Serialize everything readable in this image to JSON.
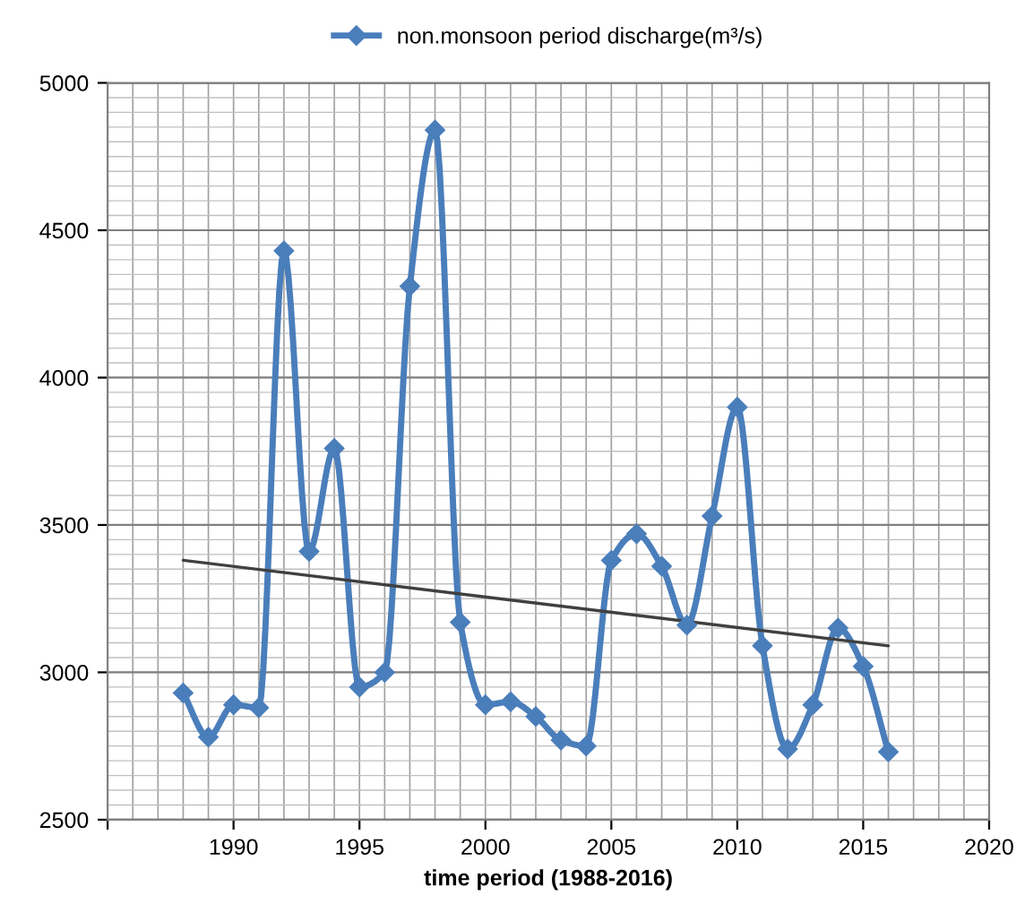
{
  "chart_data": {
    "type": "line",
    "xlabel": "time period (1988-2016)",
    "legend": "top",
    "grid": true,
    "marker": "diamond",
    "line_style": "solid",
    "xlim": [
      1985,
      2020
    ],
    "xticks": [
      {
        "value": 1985,
        "label": null
      },
      1990,
      1995,
      2000,
      2005,
      2010,
      2015,
      2020
    ],
    "ylim": [
      2500,
      5000
    ],
    "yticks": [
      2500,
      3000,
      3500,
      4000,
      4500,
      5000
    ],
    "series": [
      {
        "name": "non.monsoon period discharge(m³/s)",
        "color": "#4a7ebb",
        "x": [
          1988,
          1989,
          1990,
          1991,
          1992,
          1993,
          1994,
          1995,
          1996,
          1997,
          1998,
          1999,
          2000,
          2001,
          2002,
          2003,
          2004,
          2005,
          2006,
          2007,
          2008,
          2009,
          2010,
          2011,
          2012,
          2013,
          2014,
          2015,
          2016
        ],
        "values": [
          2930,
          2780,
          2890,
          2880,
          4430,
          3410,
          3760,
          2950,
          3000,
          4310,
          4840,
          3170,
          2890,
          2900,
          2850,
          2770,
          2750,
          3380,
          3470,
          3360,
          3160,
          3530,
          3900,
          3090,
          2740,
          2890,
          3150,
          3020,
          2730
        ]
      },
      {
        "type": "line",
        "color": "#404040",
        "marker": "none",
        "x": [
          1988,
          2016
        ],
        "values": [
          3380,
          3090
        ]
      }
    ]
  }
}
